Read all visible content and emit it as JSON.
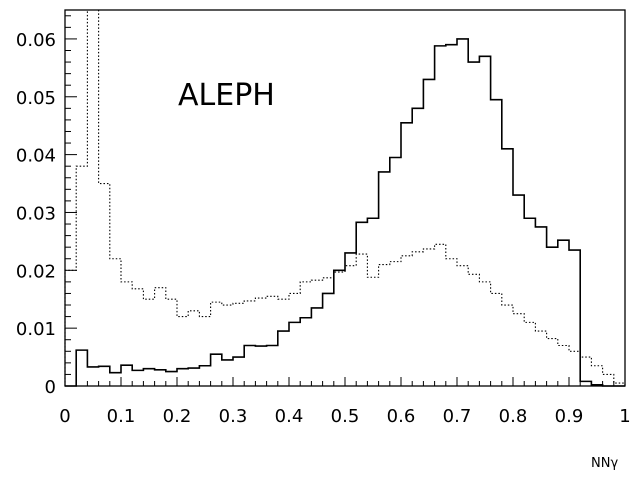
{
  "chart_data": {
    "type": "histogram",
    "title": "ALEPH",
    "xlabel": "NNγ",
    "ylabel": "",
    "xlim": [
      0,
      1
    ],
    "ylim": [
      0,
      0.065
    ],
    "grid": false,
    "x_ticks": [
      "0",
      "0.1",
      "0.2",
      "0.3",
      "0.4",
      "0.5",
      "0.6",
      "0.7",
      "0.8",
      "0.9",
      "1"
    ],
    "y_ticks": [
      "0",
      "0.01",
      "0.02",
      "0.03",
      "0.04",
      "0.05",
      "0.06"
    ],
    "bin_edges": [
      0,
      0.02,
      0.04,
      0.06,
      0.08,
      0.1,
      0.12,
      0.14,
      0.16,
      0.18,
      0.2,
      0.22,
      0.24,
      0.26,
      0.28,
      0.3,
      0.32,
      0.34,
      0.36,
      0.38,
      0.4,
      0.42,
      0.44,
      0.46,
      0.48,
      0.5,
      0.52,
      0.54,
      0.56,
      0.58,
      0.6,
      0.62,
      0.64,
      0.66,
      0.68,
      0.7,
      0.72,
      0.74,
      0.76,
      0.78,
      0.8,
      0.82,
      0.84,
      0.86,
      0.88,
      0.9,
      0.92,
      0.94,
      0.96,
      0.98,
      1.0
    ],
    "series": [
      {
        "style": "solid",
        "color": "#000000",
        "values": [
          0,
          0.0062,
          0.0033,
          0.0034,
          0.0023,
          0.0036,
          0.0027,
          0.003,
          0.0028,
          0.0025,
          0.003,
          0.0031,
          0.0035,
          0.0055,
          0.0045,
          0.005,
          0.007,
          0.0069,
          0.007,
          0.0095,
          0.011,
          0.0118,
          0.0135,
          0.016,
          0.02,
          0.023,
          0.0283,
          0.029,
          0.037,
          0.0395,
          0.0455,
          0.048,
          0.053,
          0.0588,
          0.059,
          0.06,
          0.056,
          0.057,
          0.0495,
          0.041,
          0.033,
          0.029,
          0.0275,
          0.024,
          0.0252,
          0.0235,
          0.0008,
          0.0002,
          0,
          0
        ]
      },
      {
        "style": "dotted",
        "color": "#000000",
        "values": [
          0.02,
          0.038,
          0.07,
          0.035,
          0.022,
          0.018,
          0.0168,
          0.015,
          0.017,
          0.015,
          0.012,
          0.013,
          0.012,
          0.0145,
          0.014,
          0.0143,
          0.0147,
          0.0152,
          0.0155,
          0.015,
          0.016,
          0.018,
          0.0183,
          0.0187,
          0.0197,
          0.0208,
          0.0228,
          0.0188,
          0.021,
          0.0215,
          0.0225,
          0.0232,
          0.0237,
          0.0245,
          0.022,
          0.0208,
          0.0193,
          0.018,
          0.016,
          0.014,
          0.0125,
          0.011,
          0.0095,
          0.0082,
          0.007,
          0.006,
          0.005,
          0.0035,
          0.002,
          0.0005
        ]
      }
    ]
  }
}
